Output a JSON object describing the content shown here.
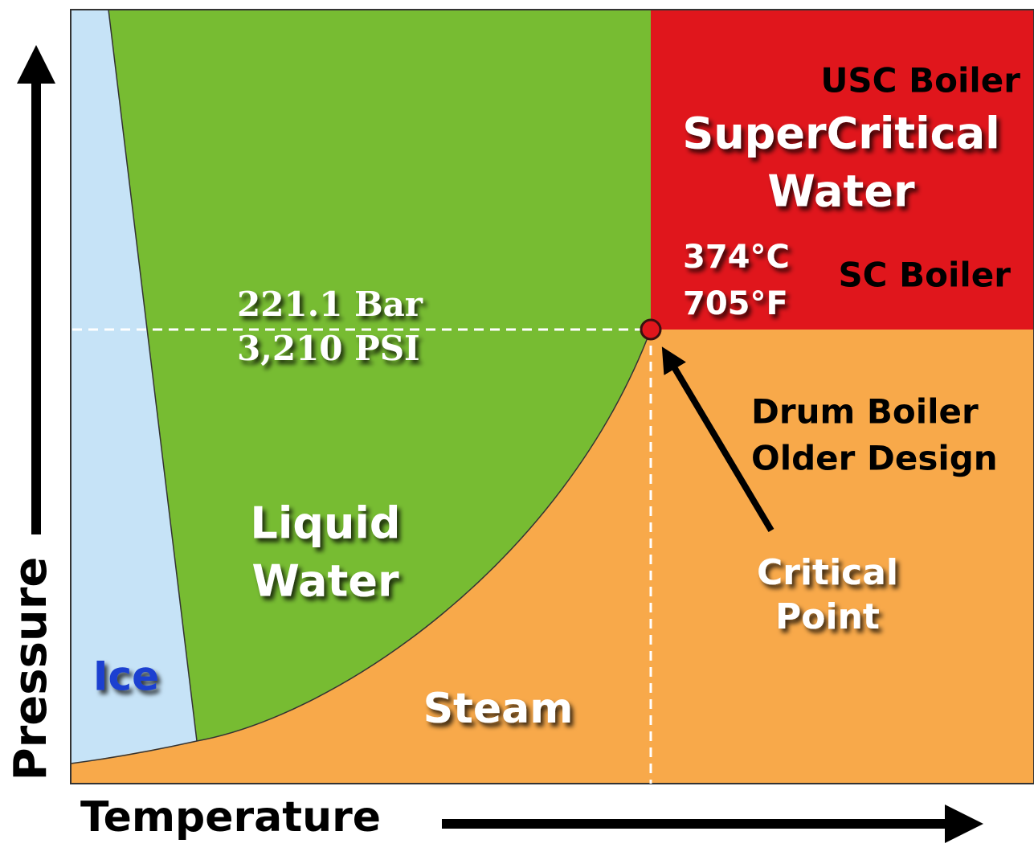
{
  "axes": {
    "y_label": "Pressure",
    "x_label": "Temperature"
  },
  "regions": {
    "ice": {
      "label": "Ice"
    },
    "liquid": {
      "label": [
        "Liquid",
        "Water"
      ]
    },
    "steam": {
      "label": "Steam"
    },
    "supercritical": {
      "label": [
        "SuperCritical",
        "Water"
      ]
    }
  },
  "critical_point": {
    "label": [
      "Critical",
      "Point"
    ],
    "pressure": [
      "221.1 Bar",
      "3,210 PSI"
    ],
    "temperature": [
      "374°C",
      "705°F"
    ]
  },
  "annotations": {
    "usc": "USC Boiler",
    "sc": "SC Boiler",
    "drum": [
      "Drum Boiler",
      "Older Design"
    ]
  }
}
